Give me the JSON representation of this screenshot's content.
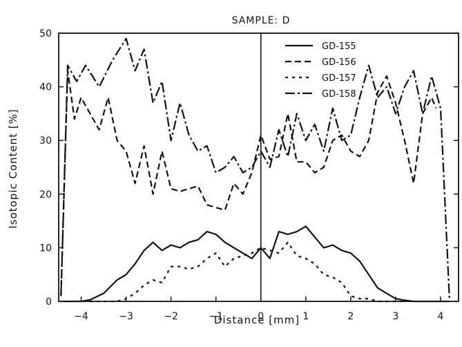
{
  "chart_data": {
    "type": "line",
    "title": "SAMPLE: D",
    "xlabel": "Distance [mm]",
    "ylabel": "Isotopic Content [%]",
    "xlim": [
      -4.5,
      4.4
    ],
    "ylim": [
      0,
      50
    ],
    "xticks": [
      -4,
      -3,
      -2,
      -1,
      0,
      1,
      2,
      3,
      4
    ],
    "yticks": [
      0,
      10,
      20,
      30,
      40,
      50
    ],
    "xtick_labels": [
      "−4",
      "−3",
      "−2",
      "−1",
      "0",
      "1",
      "2",
      "3",
      "4"
    ],
    "ytick_labels": [
      "0",
      "10",
      "20",
      "30",
      "40",
      "50"
    ],
    "grid": false,
    "legend_position": "top-right",
    "vertical_reference_line_x": 0,
    "series": [
      {
        "name": "GD-155",
        "style": "solid",
        "x": [
          -4.4,
          -4.3,
          -4.0,
          -3.8,
          -3.5,
          -3.2,
          -3.0,
          -2.8,
          -2.6,
          -2.4,
          -2.2,
          -2.0,
          -1.8,
          -1.6,
          -1.4,
          -1.2,
          -1.0,
          -0.8,
          -0.6,
          -0.4,
          -0.2,
          0.0,
          0.2,
          0.4,
          0.6,
          0.8,
          1.0,
          1.2,
          1.4,
          1.6,
          1.8,
          2.0,
          2.2,
          2.4,
          2.6,
          2.8,
          3.0,
          3.2,
          3.4,
          3.6,
          3.8,
          4.0,
          4.2
        ],
        "values": [
          0,
          0,
          0,
          0.3,
          1.5,
          4.0,
          5.0,
          7.0,
          9.5,
          11.0,
          9.5,
          10.5,
          10.0,
          11.0,
          11.5,
          13.0,
          12.5,
          11.0,
          10.0,
          9.0,
          8.0,
          10.0,
          8.0,
          13.0,
          12.5,
          13.0,
          14.0,
          12.0,
          10.0,
          10.5,
          9.5,
          9.0,
          7.5,
          5.0,
          2.5,
          1.5,
          0.5,
          0.2,
          0,
          0,
          0,
          0,
          0
        ]
      },
      {
        "name": "GD-156",
        "style": "dashed",
        "x": [
          -4.45,
          -4.3,
          -4.15,
          -4.0,
          -3.8,
          -3.6,
          -3.4,
          -3.2,
          -3.0,
          -2.8,
          -2.6,
          -2.4,
          -2.2,
          -2.0,
          -1.8,
          -1.6,
          -1.4,
          -1.2,
          -1.0,
          -0.8,
          -0.6,
          -0.4,
          -0.2,
          0.0,
          0.2,
          0.4,
          0.6,
          0.8,
          1.0,
          1.2,
          1.4,
          1.6,
          1.8,
          2.0,
          2.2,
          2.4,
          2.6,
          2.8,
          3.0,
          3.2,
          3.4,
          3.6,
          3.8,
          3.9
        ],
        "values": [
          1,
          43,
          34,
          38,
          35,
          32,
          38,
          30,
          28,
          22,
          29,
          20,
          28,
          21,
          20.5,
          21,
          21.5,
          18,
          17.5,
          17,
          22,
          20,
          24,
          31,
          26.5,
          27,
          35,
          26,
          26,
          24,
          25,
          30,
          31,
          28,
          27,
          30,
          39,
          42,
          37,
          30,
          22,
          35,
          38,
          36
        ]
      },
      {
        "name": "GD-157",
        "style": "dotted",
        "x": [
          -3.8,
          -3.5,
          -3.2,
          -3.0,
          -2.8,
          -2.6,
          -2.4,
          -2.2,
          -2.0,
          -1.8,
          -1.6,
          -1.4,
          -1.2,
          -1.0,
          -0.8,
          -0.6,
          -0.4,
          -0.2,
          0.0,
          0.2,
          0.4,
          0.6,
          0.8,
          1.0,
          1.2,
          1.4,
          1.6,
          1.8,
          2.0,
          2.2,
          2.4,
          2.6,
          2.8,
          3.0,
          3.2
        ],
        "values": [
          0,
          0,
          0,
          0.5,
          1.5,
          3.0,
          4.0,
          3.5,
          6.5,
          6.5,
          6.0,
          6.5,
          8.0,
          9.0,
          6.5,
          8.0,
          8.5,
          9.0,
          10.0,
          9.5,
          9.0,
          11.0,
          8.5,
          8.0,
          7.0,
          5.0,
          4.5,
          3.5,
          1.0,
          0.5,
          0.5,
          0,
          0,
          0,
          0
        ]
      },
      {
        "name": "GD-158",
        "style": "dash-dot",
        "x": [
          -4.45,
          -4.3,
          -4.1,
          -3.9,
          -3.6,
          -3.3,
          -3.0,
          -2.8,
          -2.6,
          -2.4,
          -2.2,
          -2.0,
          -1.8,
          -1.6,
          -1.4,
          -1.2,
          -1.0,
          -0.8,
          -0.6,
          -0.4,
          -0.2,
          0.0,
          0.2,
          0.4,
          0.6,
          0.8,
          1.0,
          1.2,
          1.4,
          1.6,
          1.8,
          2.0,
          2.2,
          2.4,
          2.6,
          2.8,
          3.0,
          3.2,
          3.4,
          3.6,
          3.8,
          4.0,
          4.2
        ],
        "values": [
          1,
          44,
          41,
          44,
          40,
          45,
          49,
          43,
          47,
          37,
          41,
          30,
          37,
          31,
          28,
          29,
          24,
          25,
          27,
          24,
          25,
          28,
          25,
          32,
          27,
          35,
          30,
          33,
          28,
          36,
          30,
          31,
          38,
          44,
          38,
          40,
          35,
          40,
          43,
          35,
          42,
          36,
          0
        ]
      }
    ]
  }
}
